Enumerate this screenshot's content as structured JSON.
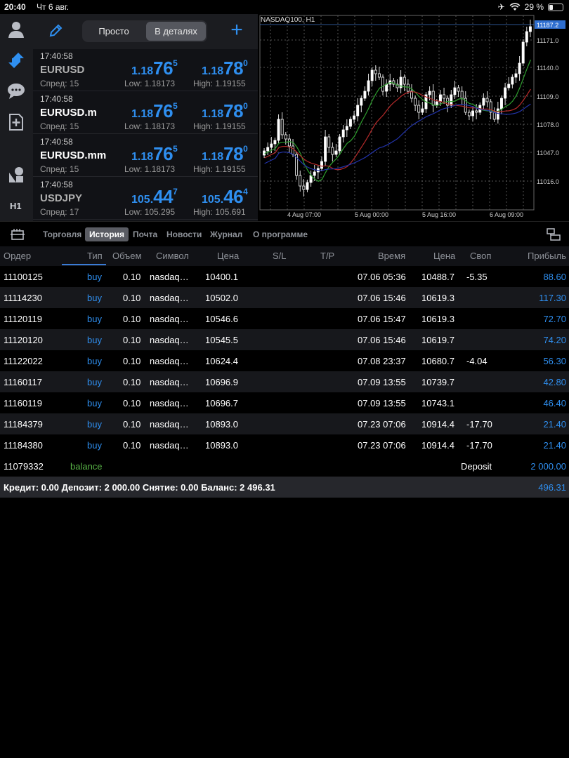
{
  "status": {
    "time": "20:40",
    "date": "Чт 6 авг.",
    "battery": "29 %",
    "battery_level": 0.29
  },
  "sidebar": {
    "timeframe": "H1"
  },
  "quotes": {
    "mode_simple": "Просто",
    "mode_detail": "В деталях",
    "rows": [
      {
        "time": "17:40:58",
        "symbol": "EURUSD",
        "spread": "Спред: 15",
        "bid_pre": "1.18",
        "bid_big": "76",
        "bid_sup": "5",
        "ask_pre": "1.18",
        "ask_big": "78",
        "ask_sup": "0",
        "low": "Low: 1.18173",
        "high": "High: 1.19155"
      },
      {
        "time": "17:40:58",
        "symbol": "EURUSD.m",
        "spread": "Спред: 15",
        "bid_pre": "1.18",
        "bid_big": "76",
        "bid_sup": "5",
        "ask_pre": "1.18",
        "ask_big": "78",
        "ask_sup": "0",
        "low": "Low: 1.18173",
        "high": "High: 1.19155"
      },
      {
        "time": "17:40:58",
        "symbol": "EURUSD.mm",
        "spread": "Спред: 15",
        "bid_pre": "1.18",
        "bid_big": "76",
        "bid_sup": "5",
        "ask_pre": "1.18",
        "ask_big": "78",
        "ask_sup": "0",
        "low": "Low: 1.18173",
        "high": "High: 1.19155"
      },
      {
        "time": "17:40:58",
        "symbol": "USDJPY",
        "spread": "Спред: 17",
        "bid_pre": "105.",
        "bid_big": "44",
        "bid_sup": "7",
        "ask_pre": "105.",
        "ask_big": "46",
        "ask_sup": "4",
        "low": "Low: 105.295",
        "high": "High: 105.691"
      }
    ]
  },
  "chart": {
    "title": "NASDAQ100, H1",
    "price_labels": [
      "11187.2",
      "11171.0",
      "11140.0",
      "11109.0",
      "11078.0",
      "11047.0",
      "11016.0"
    ],
    "time_labels": [
      "4 Aug 07:00",
      "5 Aug 00:00",
      "5 Aug 16:00",
      "6 Aug 09:00"
    ],
    "current_price": "11187.2"
  },
  "tabs": [
    {
      "label": "Торговля",
      "active": false
    },
    {
      "label": "История",
      "active": true
    },
    {
      "label": "Почта",
      "active": false
    },
    {
      "label": "Новости",
      "active": false
    },
    {
      "label": "Журнал",
      "active": false
    },
    {
      "label": "О программе",
      "active": false
    }
  ],
  "table": {
    "headers": {
      "order": "Ордер",
      "type": "Тип",
      "volume": "Объем",
      "symbol": "Символ",
      "price": "Цена",
      "sl": "S/L",
      "tp": "T/P",
      "time": "Время",
      "close_price": "Цена",
      "swap": "Своп",
      "profit": "Прибыль"
    },
    "rows": [
      {
        "order": "11100125",
        "type": "buy",
        "volume": "0.10",
        "symbol": "nasdaq…",
        "price": "10400.1",
        "time": "07.06 05:36",
        "close_price": "10488.7",
        "swap": "-5.35",
        "profit": "88.60"
      },
      {
        "order": "11114230",
        "type": "buy",
        "volume": "0.10",
        "symbol": "nasdaq…",
        "price": "10502.0",
        "time": "07.06 15:46",
        "close_price": "10619.3",
        "swap": "",
        "profit": "117.30"
      },
      {
        "order": "11120119",
        "type": "buy",
        "volume": "0.10",
        "symbol": "nasdaq…",
        "price": "10546.6",
        "time": "07.06 15:47",
        "close_price": "10619.3",
        "swap": "",
        "profit": "72.70"
      },
      {
        "order": "11120120",
        "type": "buy",
        "volume": "0.10",
        "symbol": "nasdaq…",
        "price": "10545.5",
        "time": "07.06 15:46",
        "close_price": "10619.7",
        "swap": "",
        "profit": "74.20"
      },
      {
        "order": "11122022",
        "type": "buy",
        "volume": "0.10",
        "symbol": "nasdaq…",
        "price": "10624.4",
        "time": "07.08 23:37",
        "close_price": "10680.7",
        "swap": "-4.04",
        "profit": "56.30"
      },
      {
        "order": "11160117",
        "type": "buy",
        "volume": "0.10",
        "symbol": "nasdaq…",
        "price": "10696.9",
        "time": "07.09 13:55",
        "close_price": "10739.7",
        "swap": "",
        "profit": "42.80"
      },
      {
        "order": "11160119",
        "type": "buy",
        "volume": "0.10",
        "symbol": "nasdaq…",
        "price": "10696.7",
        "time": "07.09 13:55",
        "close_price": "10743.1",
        "swap": "",
        "profit": "46.40"
      },
      {
        "order": "11184379",
        "type": "buy",
        "volume": "0.10",
        "symbol": "nasdaq…",
        "price": "10893.0",
        "time": "07.23 07:06",
        "close_price": "10914.4",
        "swap": "-17.70",
        "profit": "21.40"
      },
      {
        "order": "11184380",
        "type": "buy",
        "volume": "0.10",
        "symbol": "nasdaq…",
        "price": "10893.0",
        "time": "07.23 07:06",
        "close_price": "10914.4",
        "swap": "-17.70",
        "profit": "21.40"
      }
    ],
    "balance_row": {
      "order": "11079332",
      "type": "balance",
      "comment": "Deposit",
      "profit": "2 000.00"
    },
    "summary": "Кредит: 0.00 Депозит: 2 000.00 Снятие: 0.00 Баланс: 2 496.31",
    "summary_total": "496.31"
  },
  "colors": {
    "accent": "#2f8ff0",
    "balance": "#59b547",
    "ma_green": "#2e9e2e",
    "ma_red": "#b52a2a",
    "ma_blue": "#2233aa"
  }
}
